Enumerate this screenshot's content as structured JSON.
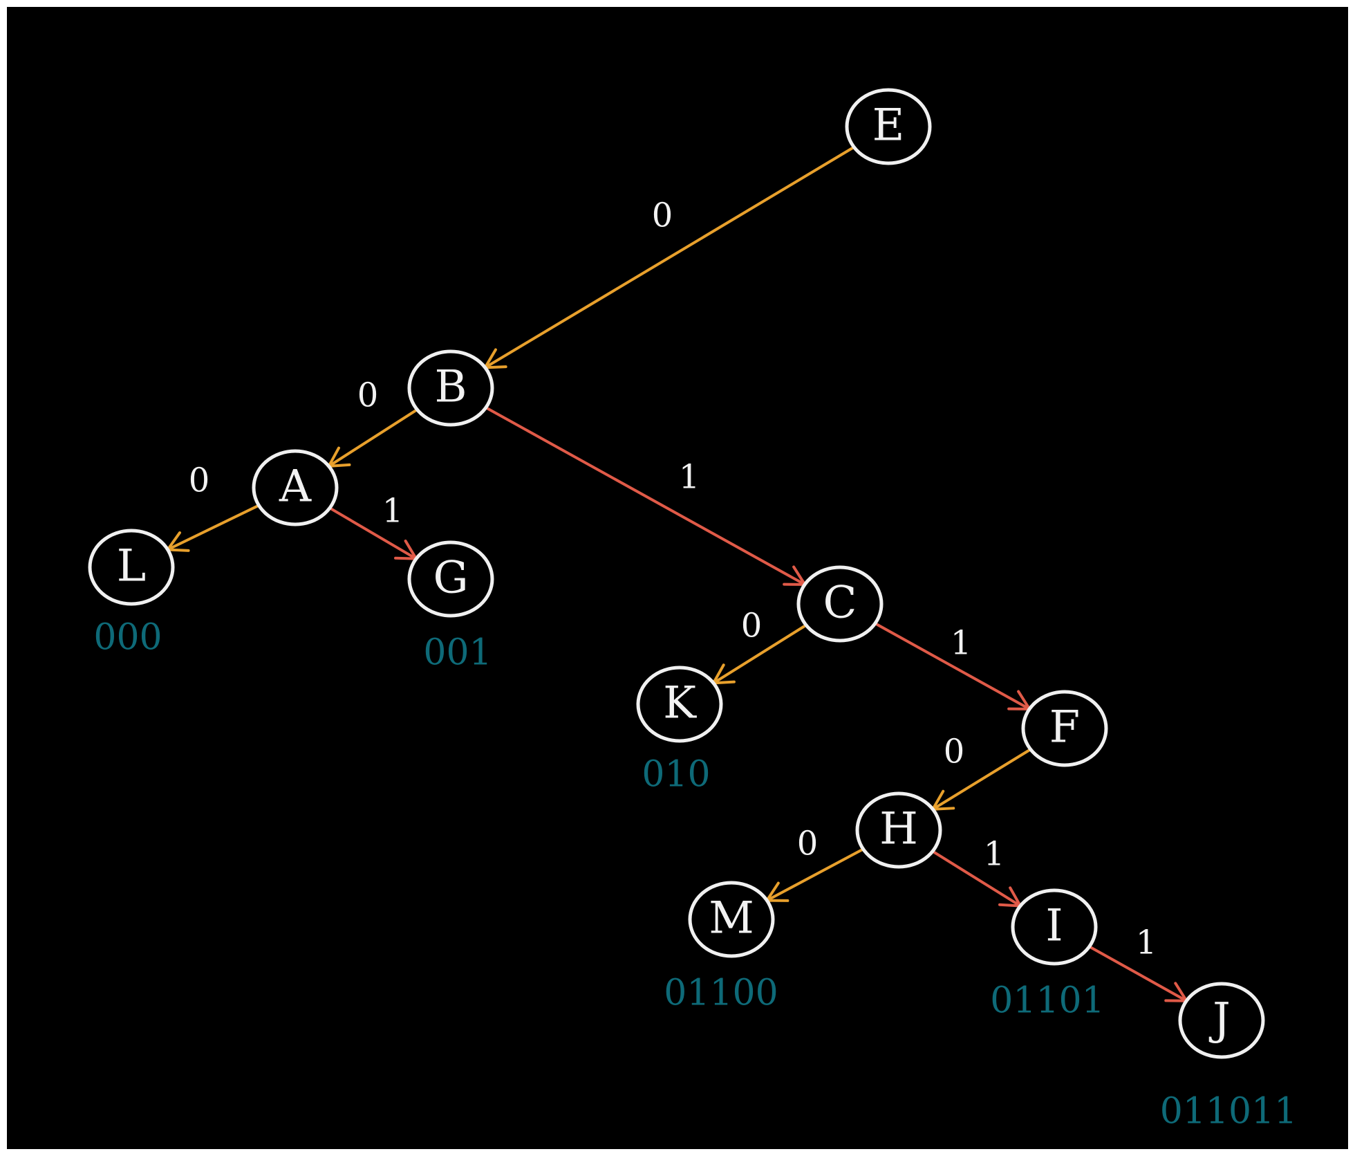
{
  "colors": {
    "background": "#000000",
    "node_stroke": "#f0f0f0",
    "zero_edge": "#e8a02c",
    "one_edge": "#e05a48",
    "code_text": "#0e6a78"
  },
  "nodes": [
    {
      "id": "E",
      "label": "E",
      "code": ""
    },
    {
      "id": "B",
      "label": "B",
      "code": ""
    },
    {
      "id": "A",
      "label": "A",
      "code": ""
    },
    {
      "id": "L",
      "label": "L",
      "code": "000"
    },
    {
      "id": "G",
      "label": "G",
      "code": "001"
    },
    {
      "id": "C",
      "label": "C",
      "code": ""
    },
    {
      "id": "K",
      "label": "K",
      "code": "010"
    },
    {
      "id": "F",
      "label": "F",
      "code": ""
    },
    {
      "id": "H",
      "label": "H",
      "code": ""
    },
    {
      "id": "M",
      "label": "M",
      "code": "01100"
    },
    {
      "id": "I",
      "label": "I",
      "code": "01101"
    },
    {
      "id": "J",
      "label": "J",
      "code": "011011"
    }
  ],
  "edges": [
    {
      "from": "E",
      "to": "B",
      "label": "0"
    },
    {
      "from": "B",
      "to": "A",
      "label": "0"
    },
    {
      "from": "B",
      "to": "C",
      "label": "1"
    },
    {
      "from": "A",
      "to": "L",
      "label": "0"
    },
    {
      "from": "A",
      "to": "G",
      "label": "1"
    },
    {
      "from": "C",
      "to": "K",
      "label": "0"
    },
    {
      "from": "C",
      "to": "F",
      "label": "1"
    },
    {
      "from": "F",
      "to": "H",
      "label": "0"
    },
    {
      "from": "H",
      "to": "M",
      "label": "0"
    },
    {
      "from": "H",
      "to": "I",
      "label": "1"
    },
    {
      "from": "I",
      "to": "J",
      "label": "1"
    }
  ]
}
